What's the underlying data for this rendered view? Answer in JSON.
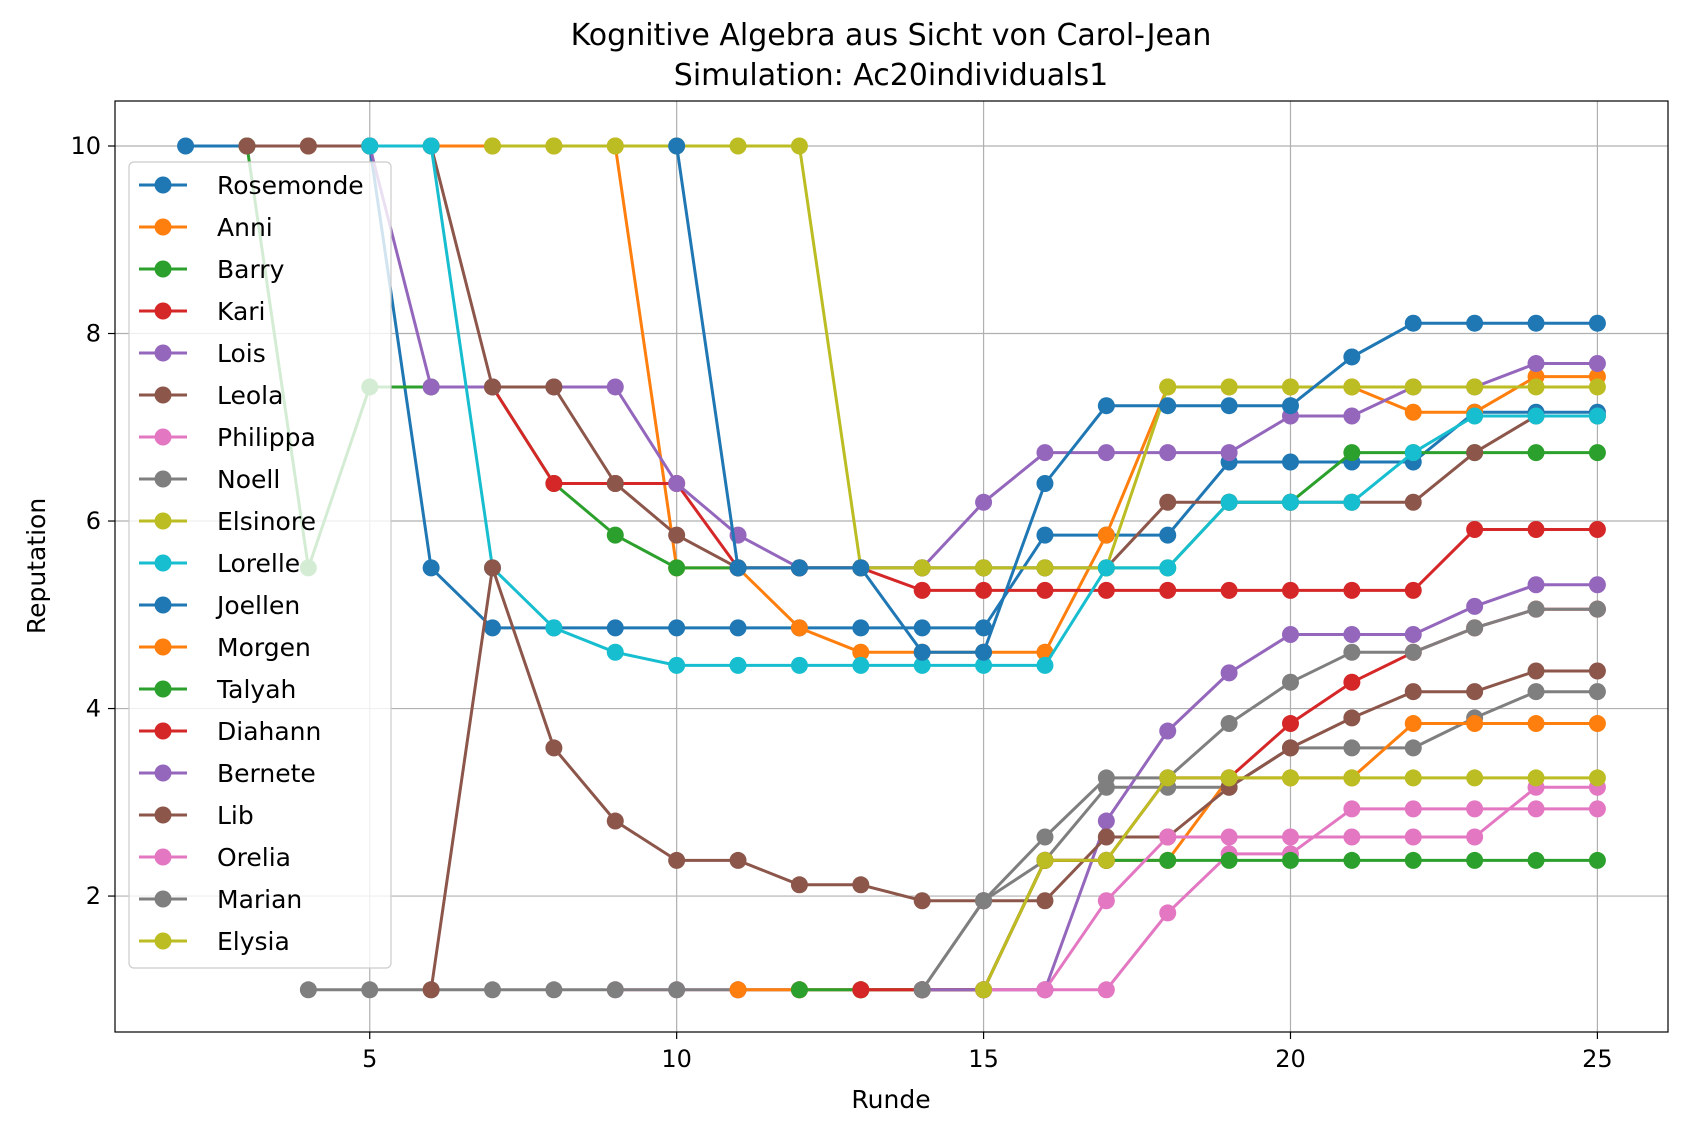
{
  "chart_data": {
    "type": "line",
    "title": "Kognitive Algebra aus Sicht von Carol-Jean",
    "subtitle": "Simulation: Ac20individuals1",
    "xlabel": "Runde",
    "ylabel": "Reputation",
    "xlim": [
      0.85,
      26.15
    ],
    "ylim": [
      0.55,
      10.48
    ],
    "xticks": [
      5,
      10,
      15,
      20,
      25
    ],
    "yticks": [
      2,
      4,
      6,
      8,
      10
    ],
    "grid": true,
    "legend_position": "upper left",
    "series": [
      {
        "name": "Rosemonde",
        "color": "#1f77b4",
        "x": [
          2,
          3,
          4,
          5,
          6,
          7,
          8,
          9,
          10,
          11,
          12,
          13,
          14,
          15,
          16,
          17,
          18,
          19,
          20,
          21,
          22,
          23,
          24,
          25
        ],
        "y": [
          10,
          10,
          10,
          10,
          5.5,
          4.86,
          4.86,
          4.86,
          4.86,
          4.86,
          4.86,
          4.86,
          4.86,
          4.86,
          5.85,
          5.85,
          5.85,
          6.63,
          6.63,
          6.63,
          6.63,
          7.16,
          7.16,
          7.16
        ]
      },
      {
        "name": "Anni",
        "color": "#ff7f0e",
        "x": [
          3,
          4,
          5,
          6,
          7,
          8,
          9,
          10,
          11,
          12,
          13,
          14,
          15,
          16,
          17,
          18,
          19,
          20,
          21,
          22,
          23,
          24,
          25
        ],
        "y": [
          10,
          10,
          10,
          10,
          10,
          10,
          10,
          5.5,
          5.5,
          4.86,
          4.6,
          4.6,
          4.6,
          4.6,
          5.85,
          7.43,
          7.43,
          7.43,
          7.43,
          7.16,
          7.16,
          7.54,
          7.54
        ]
      },
      {
        "name": "Barry",
        "color": "#2ca02c",
        "x": [
          3,
          4,
          5,
          6,
          7,
          8,
          9,
          10,
          11,
          12,
          13,
          14,
          15,
          16,
          17,
          18,
          19,
          20,
          21,
          22,
          23,
          24,
          25
        ],
        "y": [
          10,
          5.5,
          7.43,
          7.43,
          7.43,
          6.4,
          5.85,
          5.5,
          5.5,
          5.5,
          5.5,
          5.5,
          5.5,
          5.5,
          5.5,
          5.5,
          6.2,
          6.2,
          6.73,
          6.73,
          6.73,
          6.73,
          6.73
        ]
      },
      {
        "name": "Kari",
        "color": "#d62728",
        "x": [
          7,
          8,
          9,
          10,
          11,
          12,
          13,
          14,
          15,
          16,
          17,
          18,
          19,
          20,
          21,
          22,
          23,
          24,
          25
        ],
        "y": [
          7.43,
          6.4,
          6.4,
          6.4,
          5.5,
          5.5,
          5.5,
          5.26,
          5.26,
          5.26,
          5.26,
          5.26,
          5.26,
          5.26,
          5.26,
          5.26,
          5.91,
          5.91,
          5.91
        ]
      },
      {
        "name": "Lois",
        "color": "#9467bd",
        "x": [
          5,
          6,
          7,
          8,
          9,
          10,
          11,
          12,
          13,
          14,
          15,
          16,
          17,
          18,
          19,
          20,
          21,
          22,
          23,
          24,
          25
        ],
        "y": [
          10,
          7.43,
          7.43,
          7.43,
          7.43,
          6.4,
          5.85,
          5.5,
          5.5,
          5.5,
          6.2,
          6.73,
          6.73,
          6.73,
          6.73,
          7.12,
          7.12,
          7.43,
          7.43,
          7.68,
          7.68
        ]
      },
      {
        "name": "Leola",
        "color": "#8c564b",
        "x": [
          3,
          4,
          5,
          6,
          7,
          8,
          9,
          10,
          11,
          12,
          13,
          14,
          15,
          16,
          17,
          18,
          19,
          20,
          21,
          22,
          23,
          24,
          25
        ],
        "y": [
          10,
          10,
          10,
          10,
          7.43,
          7.43,
          6.4,
          5.85,
          5.5,
          5.5,
          5.5,
          5.5,
          5.5,
          5.5,
          5.5,
          6.2,
          6.2,
          6.2,
          6.2,
          6.2,
          6.73,
          7.12,
          7.12
        ]
      },
      {
        "name": "Philippa",
        "color": "#e377c2",
        "x": [
          9,
          10,
          11,
          12,
          13,
          14,
          15,
          16,
          17,
          18,
          19,
          20,
          21,
          22,
          23,
          24,
          25
        ],
        "y": [
          1,
          1,
          1,
          1,
          1,
          1,
          1,
          1,
          1,
          1.82,
          2.45,
          2.45,
          2.93,
          2.93,
          2.93,
          2.93,
          2.93
        ]
      },
      {
        "name": "Noell",
        "color": "#7f7f7f",
        "x": [
          4,
          5,
          6,
          7,
          8,
          9,
          10,
          11,
          12,
          13,
          14,
          15,
          16,
          17,
          18,
          19,
          20,
          21,
          22,
          23,
          24,
          25
        ],
        "y": [
          1,
          1,
          1,
          1,
          1,
          1,
          1,
          1,
          1,
          1,
          1,
          1.95,
          2.38,
          3.16,
          3.16,
          3.16,
          3.58,
          3.58,
          3.58,
          3.9,
          4.18,
          4.18
        ]
      },
      {
        "name": "Elsinore",
        "color": "#bcbd22",
        "x": [
          7,
          8,
          9,
          10,
          11,
          12,
          13,
          14,
          15,
          16,
          17,
          18,
          19,
          20,
          21,
          22,
          23,
          24,
          25
        ],
        "y": [
          10,
          10,
          10,
          10,
          10,
          10,
          5.5,
          5.5,
          5.5,
          5.5,
          5.5,
          7.43,
          7.43,
          7.43,
          7.43,
          7.43,
          7.43,
          7.43,
          7.43
        ]
      },
      {
        "name": "Lorelle",
        "color": "#17becf",
        "x": [
          5,
          6,
          7,
          8,
          9,
          10,
          11,
          12,
          13,
          14,
          15,
          16,
          17,
          18,
          19,
          20,
          21,
          22,
          23,
          24,
          25
        ],
        "y": [
          10,
          10,
          5.5,
          4.86,
          4.6,
          4.46,
          4.46,
          4.46,
          4.46,
          4.46,
          4.46,
          4.46,
          5.5,
          5.5,
          6.2,
          6.2,
          6.2,
          6.73,
          7.12,
          7.12,
          7.12
        ]
      },
      {
        "name": "Joellen",
        "color": "#1f77b4",
        "x": [
          10,
          11,
          12,
          13,
          14,
          15,
          16,
          17,
          18,
          19,
          20,
          21,
          22,
          23,
          24,
          25
        ],
        "y": [
          10,
          5.5,
          5.5,
          5.5,
          4.6,
          4.6,
          6.4,
          7.23,
          7.23,
          7.23,
          7.23,
          7.75,
          8.11,
          8.11,
          8.11,
          8.11
        ]
      },
      {
        "name": "Morgen",
        "color": "#ff7f0e",
        "x": [
          11,
          12,
          13,
          14,
          15,
          16,
          17,
          18,
          19,
          20,
          21,
          22,
          23,
          24,
          25
        ],
        "y": [
          1,
          1,
          1,
          1,
          1,
          2.38,
          2.38,
          2.38,
          3.26,
          3.26,
          3.26,
          3.84,
          3.84,
          3.84,
          3.84
        ]
      },
      {
        "name": "Talyah",
        "color": "#2ca02c",
        "x": [
          12,
          13,
          14,
          15,
          16,
          17,
          18,
          19,
          20,
          21,
          22,
          23,
          24,
          25
        ],
        "y": [
          1,
          1,
          1,
          1,
          2.38,
          2.38,
          2.38,
          2.38,
          2.38,
          2.38,
          2.38,
          2.38,
          2.38,
          2.38
        ]
      },
      {
        "name": "Diahann",
        "color": "#d62728",
        "x": [
          13,
          14,
          15,
          16,
          17,
          18,
          19,
          20,
          21,
          22,
          23,
          24,
          25
        ],
        "y": [
          1,
          1,
          1,
          2.38,
          2.38,
          3.26,
          3.26,
          3.84,
          4.28,
          4.6,
          4.86,
          5.06,
          5.06
        ]
      },
      {
        "name": "Bernete",
        "color": "#9467bd",
        "x": [
          14,
          15,
          16,
          17,
          18,
          19,
          20,
          21,
          22,
          23,
          24,
          25
        ],
        "y": [
          1,
          1,
          1,
          2.8,
          3.76,
          4.38,
          4.79,
          4.79,
          4.79,
          5.09,
          5.32,
          5.32
        ]
      },
      {
        "name": "Lib",
        "color": "#8c564b",
        "x": [
          6,
          7,
          8,
          9,
          10,
          11,
          12,
          13,
          14,
          15,
          16,
          17,
          18,
          19,
          20,
          21,
          22,
          23,
          24,
          25
        ],
        "y": [
          1,
          5.5,
          3.58,
          2.8,
          2.38,
          2.38,
          2.12,
          2.12,
          1.95,
          1.95,
          1.95,
          2.63,
          2.63,
          3.16,
          3.58,
          3.9,
          4.18,
          4.18,
          4.4,
          4.4
        ]
      },
      {
        "name": "Orelia",
        "color": "#e377c2",
        "x": [
          15,
          16,
          17,
          18,
          19,
          20,
          21,
          22,
          23,
          24,
          25
        ],
        "y": [
          1,
          1,
          1.95,
          2.63,
          2.63,
          2.63,
          2.63,
          2.63,
          2.63,
          3.16,
          3.16
        ]
      },
      {
        "name": "Marian",
        "color": "#7f7f7f",
        "x": [
          14,
          15,
          16,
          17,
          18,
          19,
          20,
          21,
          22,
          23,
          24,
          25
        ],
        "y": [
          1,
          1.95,
          2.63,
          3.26,
          3.26,
          3.84,
          4.28,
          4.6,
          4.6,
          4.86,
          5.06,
          5.06
        ]
      },
      {
        "name": "Elysia",
        "color": "#bcbd22",
        "x": [
          15,
          16,
          17,
          18,
          19,
          20,
          21,
          22,
          23,
          24,
          25
        ],
        "y": [
          1,
          2.38,
          2.38,
          3.26,
          3.26,
          3.26,
          3.26,
          3.26,
          3.26,
          3.26,
          3.26
        ]
      }
    ]
  }
}
